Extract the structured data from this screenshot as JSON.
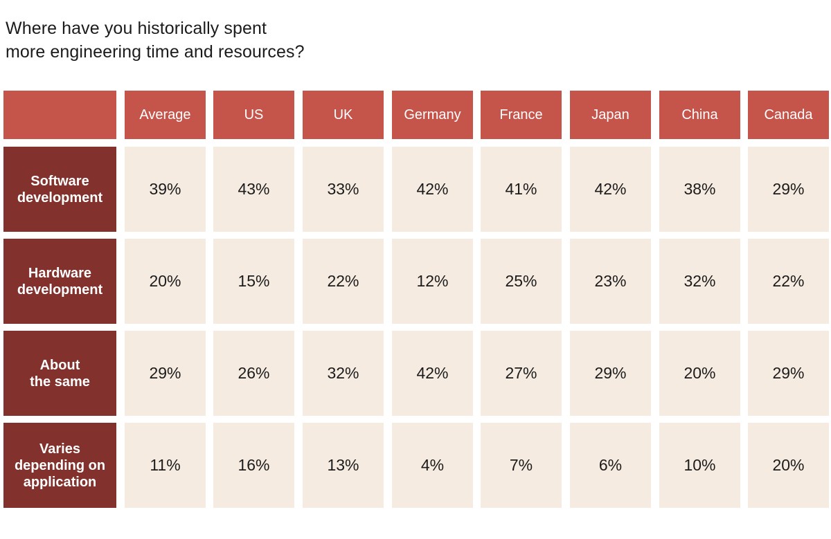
{
  "chart_data": {
    "type": "table",
    "title": [
      "Where have you historically spent",
      "more engineering time and resources?"
    ],
    "columns": [
      "Average",
      "US",
      "UK",
      "Germany",
      "France",
      "Japan",
      "China",
      "Canada"
    ],
    "rows": [
      {
        "label": "Software\ndevelopment",
        "values": [
          "39%",
          "43%",
          "33%",
          "42%",
          "41%",
          "42%",
          "38%",
          "29%"
        ]
      },
      {
        "label": "Hardware\ndevelopment",
        "values": [
          "20%",
          "15%",
          "22%",
          "12%",
          "25%",
          "23%",
          "32%",
          "22%"
        ]
      },
      {
        "label": "About\nthe same",
        "values": [
          "29%",
          "26%",
          "32%",
          "42%",
          "27%",
          "29%",
          "20%",
          "29%"
        ]
      },
      {
        "label": "Varies\ndepending on\napplication",
        "values": [
          "11%",
          "16%",
          "13%",
          "4%",
          "7%",
          "6%",
          "10%",
          "20%"
        ]
      }
    ],
    "colors": {
      "header": "#c5544b",
      "row_header": "#82312c",
      "cell": "#f5ebe1",
      "text": "#1b1b1b"
    }
  }
}
